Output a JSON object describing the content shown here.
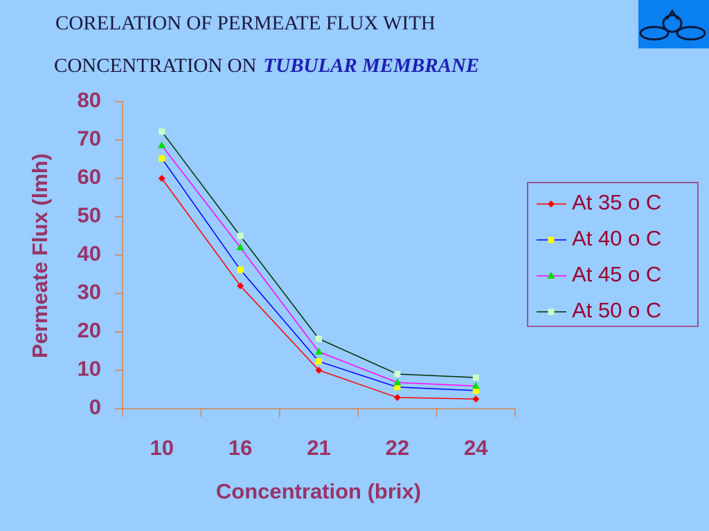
{
  "chart_data": {
    "type": "line",
    "title": "CORELATION OF PERMEATE FLUX WITH",
    "subtitle": "CONCENTRATION  ON",
    "subtitle_emphasis": "TUBULAR MEMBRANE",
    "x_label": "Concentration (brix)",
    "y_label": "Permeate Flux (lmh)",
    "categories": [
      "10",
      "16",
      "21",
      "22",
      "24"
    ],
    "series": [
      {
        "name": "At 35 o C",
        "color": "#ff0000",
        "marker_color": "#ff0000",
        "marker": "diamond",
        "values": [
          60,
          32,
          10,
          2.9,
          2.5
        ]
      },
      {
        "name": "At 40 o C",
        "color": "#0000ff",
        "marker_color": "#ffff00",
        "marker": "square",
        "values": [
          65.2,
          36.2,
          12.3,
          5.6,
          4.7
        ]
      },
      {
        "name": "At 45 o C",
        "color": "#ff00ff",
        "marker_color": "#00dd00",
        "marker": "triangle",
        "values": [
          68.6,
          42,
          14.8,
          6.8,
          5.9
        ]
      },
      {
        "name": "At 50 o C",
        "color": "#003300",
        "marker_color": "#ccffcc",
        "marker": "square",
        "values": [
          72.2,
          45,
          18.2,
          9,
          8.1
        ]
      }
    ],
    "ylim": [
      0,
      80
    ],
    "yticks": [
      0,
      10,
      20,
      30,
      40,
      50,
      60,
      70,
      80
    ],
    "legend": "right",
    "grid": false
  }
}
